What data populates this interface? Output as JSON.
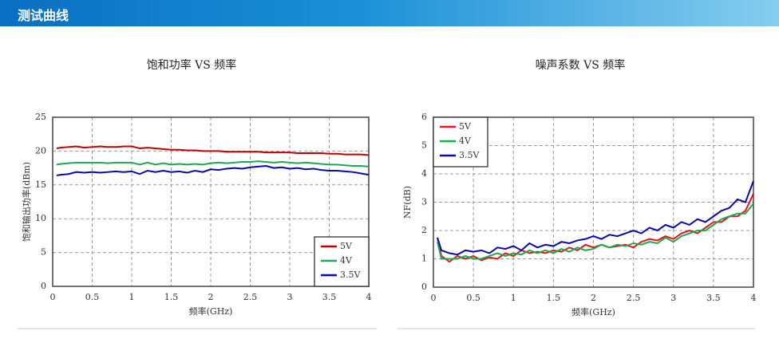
{
  "header": {
    "title": "测试曲线"
  },
  "chart_data": [
    {
      "type": "line",
      "title": "饱和功率 VS 频率",
      "x_label": "频率(GHz)",
      "y_label": "饱和输出功率(dBm)",
      "x": [
        0.05,
        0.1,
        0.2,
        0.3,
        0.4,
        0.5,
        0.6,
        0.7,
        0.8,
        0.9,
        1.0,
        1.1,
        1.2,
        1.3,
        1.4,
        1.5,
        1.6,
        1.7,
        1.8,
        1.9,
        2.0,
        2.1,
        2.2,
        2.3,
        2.4,
        2.5,
        2.6,
        2.7,
        2.8,
        2.9,
        3.0,
        3.1,
        3.2,
        3.3,
        3.4,
        3.5,
        3.6,
        3.7,
        3.8,
        3.9,
        4.0
      ],
      "series": [
        {
          "name": "5V",
          "color": "#c00000",
          "values": [
            20.4,
            20.5,
            20.6,
            20.7,
            20.5,
            20.6,
            20.7,
            20.6,
            20.6,
            20.7,
            20.7,
            20.4,
            20.5,
            20.4,
            20.3,
            20.2,
            20.2,
            20.1,
            20.1,
            20.0,
            20.0,
            20.0,
            19.9,
            19.9,
            19.9,
            19.9,
            19.9,
            19.8,
            19.8,
            19.8,
            19.8,
            19.7,
            19.7,
            19.7,
            19.7,
            19.6,
            19.6,
            19.5,
            19.5,
            19.5,
            19.4
          ]
        },
        {
          "name": "4V",
          "color": "#1fa84f",
          "values": [
            18.0,
            18.1,
            18.2,
            18.3,
            18.3,
            18.3,
            18.3,
            18.2,
            18.3,
            18.3,
            18.3,
            18.0,
            18.3,
            18.0,
            18.2,
            18.0,
            18.1,
            18.0,
            18.1,
            18.0,
            18.2,
            18.3,
            18.2,
            18.3,
            18.4,
            18.4,
            18.5,
            18.4,
            18.3,
            18.4,
            18.3,
            18.2,
            18.3,
            18.2,
            18.1,
            18.0,
            18.0,
            17.9,
            17.8,
            17.8,
            17.7
          ]
        },
        {
          "name": "3.5V",
          "color": "#0a0aa8",
          "values": [
            16.4,
            16.5,
            16.6,
            16.9,
            16.8,
            16.9,
            16.8,
            16.9,
            17.0,
            16.9,
            17.0,
            16.6,
            17.1,
            16.9,
            17.1,
            16.9,
            17.0,
            16.8,
            17.1,
            16.9,
            17.3,
            17.2,
            17.4,
            17.5,
            17.4,
            17.6,
            17.7,
            17.8,
            17.5,
            17.6,
            17.4,
            17.5,
            17.3,
            17.4,
            17.2,
            17.1,
            17.1,
            17.0,
            16.9,
            16.7,
            16.5
          ]
        }
      ],
      "xlim": [
        0,
        4
      ],
      "xticks": [
        0,
        0.5,
        1,
        1.5,
        2,
        2.5,
        3,
        3.5,
        4
      ],
      "ylim": [
        0,
        25
      ],
      "yticks": [
        0,
        5,
        10,
        15,
        20,
        25
      ],
      "grid": true,
      "legend": "lower right"
    },
    {
      "type": "line",
      "title": "噪声系数 VS 频率",
      "x_label": "频率(GHz)",
      "y_label": "NF(dB)",
      "x": [
        0.05,
        0.1,
        0.2,
        0.3,
        0.4,
        0.5,
        0.6,
        0.7,
        0.8,
        0.9,
        1.0,
        1.1,
        1.2,
        1.3,
        1.4,
        1.5,
        1.6,
        1.7,
        1.8,
        1.9,
        2.0,
        2.1,
        2.2,
        2.3,
        2.4,
        2.5,
        2.6,
        2.7,
        2.8,
        2.9,
        3.0,
        3.1,
        3.2,
        3.3,
        3.4,
        3.5,
        3.6,
        3.7,
        3.8,
        3.9,
        4.0
      ],
      "series": [
        {
          "name": "5V",
          "color": "#e8141c",
          "values": [
            1.75,
            1.1,
            0.9,
            1.1,
            1.0,
            1.1,
            0.95,
            1.05,
            1.0,
            1.2,
            1.1,
            1.3,
            1.2,
            1.25,
            1.2,
            1.3,
            1.25,
            1.4,
            1.3,
            1.5,
            1.4,
            1.5,
            1.4,
            1.45,
            1.5,
            1.4,
            1.6,
            1.7,
            1.65,
            1.8,
            1.7,
            1.9,
            2.0,
            1.9,
            2.1,
            2.3,
            2.3,
            2.5,
            2.5,
            2.7,
            3.3
          ]
        },
        {
          "name": "4V",
          "color": "#1fa84f",
          "values": [
            1.6,
            1.0,
            1.0,
            1.0,
            1.1,
            1.0,
            1.0,
            1.1,
            1.2,
            1.1,
            1.2,
            1.15,
            1.3,
            1.2,
            1.3,
            1.2,
            1.35,
            1.25,
            1.4,
            1.3,
            1.35,
            1.5,
            1.4,
            1.5,
            1.45,
            1.55,
            1.5,
            1.6,
            1.55,
            1.75,
            1.6,
            1.8,
            1.9,
            2.0,
            2.0,
            2.2,
            2.4,
            2.5,
            2.6,
            2.6,
            2.95
          ]
        },
        {
          "name": "3.5V",
          "color": "#0a0aa8",
          "values": [
            1.75,
            1.3,
            1.2,
            1.15,
            1.3,
            1.25,
            1.3,
            1.2,
            1.4,
            1.35,
            1.45,
            1.3,
            1.55,
            1.4,
            1.5,
            1.45,
            1.6,
            1.55,
            1.65,
            1.7,
            1.8,
            1.7,
            1.85,
            1.8,
            1.9,
            2.0,
            1.9,
            2.1,
            2.0,
            2.2,
            2.1,
            2.3,
            2.2,
            2.4,
            2.3,
            2.5,
            2.7,
            2.8,
            3.1,
            3.0,
            3.75
          ]
        }
      ],
      "xlim": [
        0,
        4
      ],
      "xticks": [
        0,
        0.5,
        1,
        1.5,
        2,
        2.5,
        3,
        3.5,
        4
      ],
      "ylim": [
        0,
        6
      ],
      "yticks": [
        0,
        1,
        2,
        3,
        4,
        5,
        6
      ],
      "grid": true,
      "legend": "upper left"
    }
  ]
}
